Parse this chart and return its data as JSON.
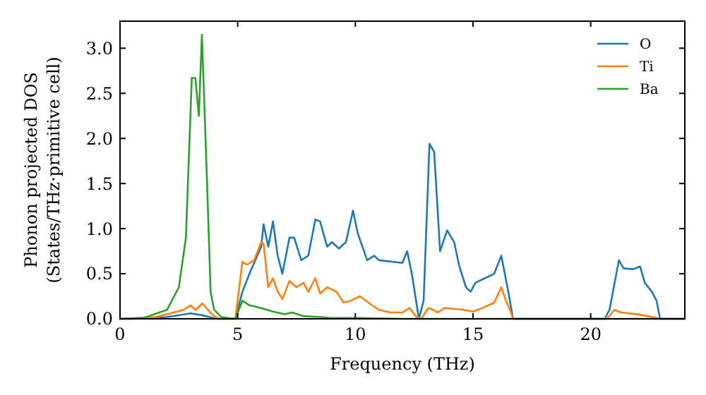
{
  "chart_data": {
    "type": "line",
    "xlabel": "Frequency (THz)",
    "ylabel": "Phonon projected DOS\n(States/THz·primitive cell)",
    "xlim": [
      0,
      24
    ],
    "ylim": [
      0,
      3.3
    ],
    "xticks": [
      0,
      5,
      10,
      15,
      20
    ],
    "yticks": [
      {
        "value": 0,
        "label": "0.0"
      },
      {
        "value": 0.5,
        "label": "0.5"
      },
      {
        "value": 1,
        "label": "1.0"
      },
      {
        "value": 1.5,
        "label": "1.5"
      },
      {
        "value": 2,
        "label": "2.0"
      },
      {
        "value": 2.5,
        "label": "2.5"
      },
      {
        "value": 3,
        "label": "3.0"
      }
    ],
    "legend": "top right",
    "grid": false,
    "marker": "none",
    "line_style": "solid",
    "series": [
      {
        "name": "O",
        "color": "#1f77b4",
        "x": [
          0,
          0.5,
          1,
          2,
          2.5,
          3,
          3.5,
          4.1,
          4.9,
          5.2,
          5.5,
          6,
          6.1,
          6.3,
          6.5,
          6.7,
          6.9,
          7.2,
          7.4,
          7.7,
          8,
          8.3,
          8.5,
          8.8,
          9,
          9.3,
          9.6,
          9.9,
          10.1,
          10.5,
          10.8,
          11,
          12,
          12.2,
          12.4,
          12.7,
          12.9,
          13.15,
          13.35,
          13.6,
          13.9,
          14.2,
          14.4,
          14.7,
          14.9,
          15.1,
          15.5,
          15.9,
          16.2,
          16.5,
          16.7,
          20.6,
          20.8,
          21.2,
          21.4,
          21.8,
          22.1,
          22.3,
          22.6,
          22.8,
          22.95,
          24
        ],
        "values": [
          0,
          0,
          0.01,
          0.02,
          0.04,
          0.06,
          0.04,
          0,
          0,
          0.3,
          0.5,
          0.8,
          1.05,
          0.8,
          1.08,
          0.7,
          0.5,
          0.9,
          0.9,
          0.65,
          0.7,
          1.1,
          1.08,
          0.8,
          0.85,
          0.78,
          0.85,
          1.2,
          0.95,
          0.65,
          0.7,
          0.65,
          0.62,
          0.75,
          0.5,
          0,
          0.2,
          1.94,
          1.85,
          0.75,
          0.98,
          0.85,
          0.6,
          0.35,
          0.3,
          0.4,
          0.45,
          0.5,
          0.7,
          0.3,
          0,
          0,
          0.1,
          0.65,
          0.56,
          0.55,
          0.58,
          0.4,
          0.3,
          0.2,
          0,
          0
        ]
      },
      {
        "name": "Ti",
        "color": "#ff7f0e",
        "x": [
          0,
          1.5,
          2,
          2.7,
          3,
          3.2,
          3.5,
          3.9,
          4.2,
          4.9,
          5.2,
          5.4,
          5.7,
          6,
          6.1,
          6.3,
          6.5,
          6.7,
          6.9,
          7.2,
          7.5,
          7.8,
          8,
          8.3,
          8.5,
          8.8,
          9.2,
          9.5,
          9.8,
          10.2,
          10.6,
          11,
          11.5,
          12,
          12.3,
          12.6,
          12.8,
          13.1,
          13.3,
          13.5,
          13.8,
          14.2,
          14.6,
          15,
          15.4,
          15.9,
          16.2,
          16.4,
          16.6,
          16.7,
          20.7,
          21,
          21.3,
          22,
          22.8,
          23,
          24
        ],
        "values": [
          0,
          0.02,
          0.05,
          0.1,
          0.15,
          0.1,
          0.17,
          0.05,
          0,
          0,
          0.63,
          0.6,
          0.65,
          0.85,
          0.83,
          0.35,
          0.45,
          0.3,
          0.22,
          0.42,
          0.35,
          0.4,
          0.3,
          0.45,
          0.28,
          0.35,
          0.3,
          0.18,
          0.2,
          0.25,
          0.17,
          0.1,
          0.07,
          0.07,
          0.12,
          0.02,
          0,
          0.12,
          0.1,
          0.07,
          0.12,
          0.11,
          0.1,
          0.08,
          0.12,
          0.18,
          0.35,
          0.2,
          0.08,
          0,
          0,
          0.1,
          0.07,
          0.05,
          0.01,
          0,
          0
        ]
      },
      {
        "name": "Ba",
        "color": "#2ca02c",
        "x": [
          0,
          1,
          2,
          2.5,
          2.8,
          3.05,
          3.2,
          3.35,
          3.48,
          3.7,
          3.85,
          4,
          4.3,
          4.9,
          5.2,
          5.5,
          6,
          6.5,
          7,
          7.3,
          7.8,
          8.5,
          9,
          10,
          12,
          24
        ],
        "values": [
          0,
          0.01,
          0.1,
          0.35,
          0.9,
          2.67,
          2.67,
          2.25,
          3.15,
          1.5,
          0.3,
          0.1,
          0.02,
          0,
          0.2,
          0.15,
          0.12,
          0.08,
          0.05,
          0.07,
          0.03,
          0.02,
          0.01,
          0.01,
          0,
          0
        ]
      }
    ]
  }
}
